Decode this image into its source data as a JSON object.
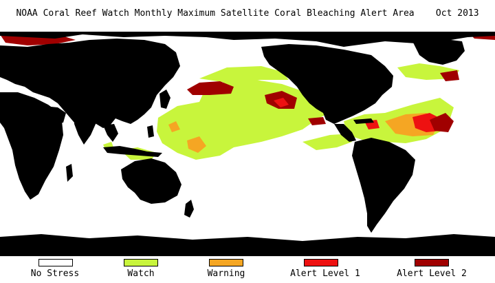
{
  "title": "NOAA Coral Reef Watch Monthly Maximum Satellite Coral Bleaching Alert Area    Oct 2013",
  "colors": {
    "land": "#000000",
    "ocean": "#ffffff",
    "no_stress": "#ffffff",
    "watch": "#c8f53c",
    "warning": "#f5a623",
    "alert_level_1": "#ee1111",
    "alert_level_2": "#a00000"
  },
  "legend": [
    {
      "label": "No Stress",
      "color_key": "no_stress"
    },
    {
      "label": "Watch",
      "color_key": "watch"
    },
    {
      "label": "Warning",
      "color_key": "warning"
    },
    {
      "label": "Alert Level 1",
      "color_key": "alert_level_1"
    },
    {
      "label": "Alert Level 2",
      "color_key": "alert_level_2"
    }
  ]
}
